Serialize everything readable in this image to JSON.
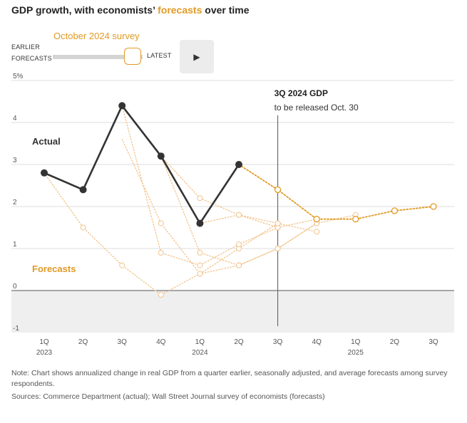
{
  "header": {
    "title_prefix": "GDP growth, with economists’ ",
    "title_highlight": "forecasts",
    "title_suffix": " over time"
  },
  "controls": {
    "survey_label": "October 2024 survey",
    "earlier_label_1": "EARLIER",
    "earlier_label_2": "FORECASTS",
    "latest_label": "LATEST",
    "play_icon": "▶"
  },
  "colors": {
    "actual": "#333333",
    "forecast": "#e19a25",
    "forecast_faded": "#f2c48c",
    "grid": "#dddddd",
    "negative_band": "#efefef"
  },
  "chart_data": {
    "type": "line",
    "title": "GDP growth, with economists’ forecasts over time",
    "ylabel": "%",
    "ylim": [
      -1,
      5
    ],
    "yticks": [
      -1,
      0,
      1,
      2,
      3,
      4,
      5
    ],
    "ytick_labels": [
      "-1",
      "0",
      "1",
      "2",
      "3",
      "4",
      "5%"
    ],
    "categories": [
      "1Q",
      "2Q",
      "3Q",
      "4Q",
      "1Q",
      "2Q",
      "3Q",
      "4Q",
      "1Q",
      "2Q",
      "3Q"
    ],
    "year_labels": [
      {
        "index": 0,
        "label": "2023"
      },
      {
        "index": 4,
        "label": "2024"
      },
      {
        "index": 8,
        "label": "2025"
      }
    ],
    "annotation": {
      "index": 6,
      "title": "3Q 2024 GDP",
      "subtitle": "to be released Oct. 30"
    },
    "label_actual": "Actual",
    "label_forecasts": "Forecasts",
    "actual": {
      "name": "Actual",
      "values": [
        2.8,
        2.4,
        4.4,
        3.2,
        1.6,
        3.0
      ]
    },
    "current_forecast": {
      "name": "October 2024 survey",
      "start": 5,
      "values": [
        3.0,
        2.4,
        1.7,
        1.7,
        1.9,
        2.0
      ]
    },
    "earlier_forecasts": [
      {
        "start": 0,
        "values": [
          2.8,
          1.5,
          0.6,
          -0.1,
          0.4,
          0.6,
          1.0,
          1.6,
          1.8
        ]
      },
      {
        "start": 2,
        "values": [
          3.6,
          1.6,
          0.4,
          1.0,
          1.6
        ]
      },
      {
        "start": 2,
        "values": [
          4.4,
          0.9,
          0.6,
          1.1,
          1.5,
          1.7
        ]
      },
      {
        "start": 3,
        "values": [
          3.2,
          0.9,
          0.6,
          1.0,
          1.6
        ]
      },
      {
        "start": 3,
        "values": [
          3.2,
          2.2,
          1.8,
          1.5
        ]
      },
      {
        "start": 4,
        "values": [
          1.6,
          1.8,
          1.6,
          1.4
        ]
      }
    ]
  },
  "footer": {
    "note": "Note: Chart shows annualized change in real GDP from a quarter earlier, seasonally adjusted, and average forecasts among survey respondents.",
    "sources": "Sources: Commerce Department (actual); Wall Street Journal survey of economists (forecasts)"
  }
}
